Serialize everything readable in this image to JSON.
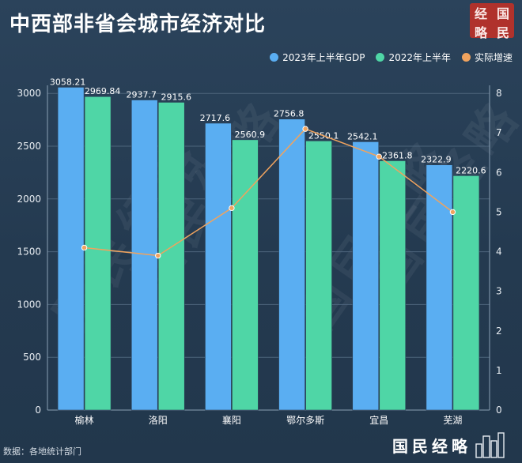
{
  "title": "中西部非省会城市经济对比",
  "logo": {
    "chars": [
      "经",
      "国",
      "略",
      "民"
    ]
  },
  "legend": [
    {
      "name": "2023年上半年GDP",
      "color": "#5aaef2"
    },
    {
      "name": "2022年上半年",
      "color": "#4fd6a6"
    },
    {
      "name": "实际增速",
      "color": "#f0a35e"
    }
  ],
  "source": "数据：各地统计部门",
  "brand": "国民经略",
  "watermarks": [
    "国民经略",
    "国民经略",
    "国民经略",
    "国民经略"
  ],
  "chart_data": {
    "type": "bar",
    "categories": [
      "榆林",
      "洛阳",
      "襄阳",
      "鄂尔多斯",
      "宜昌",
      "芜湖"
    ],
    "series": [
      {
        "name": "2023年上半年GDP",
        "values": [
          3058.21,
          2937.7,
          2717.6,
          2756.8,
          2542.1,
          2322.9
        ],
        "labels": [
          "3058.21",
          "2937.7",
          "2717.6",
          "2756.8",
          "2542.1",
          "2322.9"
        ],
        "color": "#5aaef2",
        "axis": "left"
      },
      {
        "name": "2022年上半年",
        "values": [
          2969.84,
          2915.6,
          2560.9,
          2550.1,
          2361.8,
          2220.6
        ],
        "labels": [
          "2969.84",
          "2915.6",
          "2560.9",
          "2550.1",
          "2361.8",
          "2220.6"
        ],
        "color": "#4fd6a6",
        "axis": "left"
      },
      {
        "name": "实际增速",
        "type": "line",
        "values": [
          4.1,
          3.9,
          5.1,
          7.1,
          6.4,
          5.0
        ],
        "color": "#f0a35e",
        "axis": "right"
      }
    ],
    "ylim_left": [
      0,
      3000
    ],
    "yticks_left": [
      "0",
      "500",
      "1000",
      "1500",
      "2000",
      "2500",
      "3000"
    ],
    "ylim_right": [
      0,
      8
    ],
    "yticks_right": [
      "0",
      "1",
      "2",
      "3",
      "4",
      "5",
      "6",
      "7",
      "8"
    ],
    "grid": true,
    "legend_position": "top-right"
  }
}
